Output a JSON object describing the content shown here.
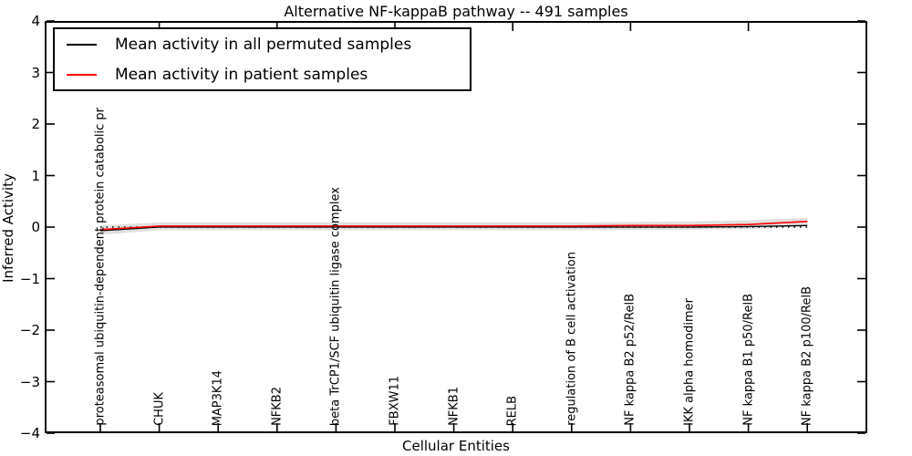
{
  "title": "Alternative NF-kappaB pathway -- 491 samples",
  "legend": {
    "items": [
      {
        "label": "Mean activity in all permuted samples",
        "color": "#000000"
      },
      {
        "label": "Mean activity in patient samples",
        "color": "#ff0000"
      }
    ]
  },
  "axes": {
    "xlabel": "Cellular Entities",
    "ylabel": "Inferred Activity"
  },
  "chart_data": {
    "type": "line",
    "title": "Alternative NF-kappaB pathway -- 491 samples",
    "xlabel": "Cellular Entities",
    "ylabel": "Inferred Activity",
    "ylim": [
      -4,
      4
    ],
    "ytick_values": [
      4,
      3,
      2,
      1,
      0,
      -1,
      -2,
      -3,
      -4
    ],
    "ytick_labels": [
      "4",
      "3",
      "2",
      "1",
      "0",
      "−1",
      "−2",
      "−3",
      "−4"
    ],
    "grid": false,
    "legend_position": "upper left",
    "categories": [
      "proteasomal ubiquitin-dependent protein catabolic pr",
      "CHUK",
      "MAP3K14",
      "NFKB2",
      "beta TrCP1/SCF ubiquitin ligase complex",
      "FBXW11",
      "NFKB1",
      "RELB",
      "regulation of B cell activation",
      "NF kappa B2 p52/RelB",
      "IKK alpha homodimer",
      "NF kappa B1 p50/RelB",
      "NF kappa B2 p100/RelB"
    ],
    "series": [
      {
        "name": "Mean activity in all permuted samples",
        "color": "#000000",
        "values": [
          -0.07,
          0.0,
          0.0,
          0.0,
          0.0,
          0.0,
          0.0,
          0.0,
          0.0,
          0.0,
          0.0,
          0.01,
          0.03
        ]
      },
      {
        "name": "Mean activity in patient samples",
        "color": "#ff0000",
        "values": [
          -0.05,
          0.02,
          0.02,
          0.02,
          0.02,
          0.02,
          0.02,
          0.02,
          0.02,
          0.03,
          0.03,
          0.05,
          0.11
        ]
      }
    ],
    "band": {
      "color": "#e0e0e0",
      "upper": [
        0.03,
        0.09,
        0.09,
        0.09,
        0.09,
        0.09,
        0.09,
        0.09,
        0.09,
        0.1,
        0.11,
        0.13,
        0.18
      ],
      "lower": [
        -0.15,
        -0.06,
        -0.06,
        -0.06,
        -0.06,
        -0.06,
        -0.06,
        -0.06,
        -0.06,
        -0.05,
        -0.05,
        -0.04,
        0.02
      ]
    },
    "zero_line": {
      "value": 0,
      "style": "dotted",
      "color": "#000000"
    }
  }
}
